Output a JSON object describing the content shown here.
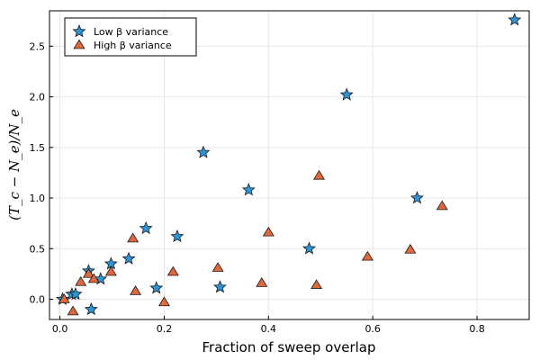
{
  "chart_data": {
    "type": "scatter",
    "xlabel": "Fraction of sweep overlap",
    "ylabel": "(T_c − N_e)/N_e",
    "xlim": [
      -0.02,
      0.9
    ],
    "ylim": [
      -0.2,
      2.85
    ],
    "x_ticks": [
      0.0,
      0.2,
      0.4,
      0.6,
      0.8
    ],
    "x_tick_labels": [
      "0.0",
      "0.2",
      "0.4",
      "0.6",
      "0.8"
    ],
    "y_ticks": [
      0.0,
      0.5,
      1.0,
      1.5,
      2.0,
      2.5
    ],
    "y_tick_labels": [
      "0.0",
      "0.5",
      "1.0",
      "1.5",
      "2.0",
      "2.5"
    ],
    "grid": true,
    "legend_position": "top-left",
    "series": [
      {
        "name": "Low β variance",
        "marker": "star",
        "color": "#2b95d8",
        "points": [
          {
            "x": 0.005,
            "y": 0.0
          },
          {
            "x": 0.023,
            "y": 0.05
          },
          {
            "x": 0.03,
            "y": 0.05
          },
          {
            "x": 0.055,
            "y": 0.28
          },
          {
            "x": 0.06,
            "y": -0.1
          },
          {
            "x": 0.078,
            "y": 0.2
          },
          {
            "x": 0.098,
            "y": 0.35
          },
          {
            "x": 0.132,
            "y": 0.4
          },
          {
            "x": 0.165,
            "y": 0.7
          },
          {
            "x": 0.185,
            "y": 0.11
          },
          {
            "x": 0.225,
            "y": 0.62
          },
          {
            "x": 0.275,
            "y": 1.45
          },
          {
            "x": 0.307,
            "y": 0.12
          },
          {
            "x": 0.362,
            "y": 1.08
          },
          {
            "x": 0.478,
            "y": 0.5
          },
          {
            "x": 0.55,
            "y": 2.02
          },
          {
            "x": 0.685,
            "y": 1.0
          },
          {
            "x": 0.872,
            "y": 2.76
          }
        ]
      },
      {
        "name": "High β variance",
        "marker": "triangle",
        "color": "#e0683c",
        "points": [
          {
            "x": 0.008,
            "y": 0.0
          },
          {
            "x": 0.025,
            "y": -0.12
          },
          {
            "x": 0.04,
            "y": 0.17
          },
          {
            "x": 0.055,
            "y": 0.25
          },
          {
            "x": 0.065,
            "y": 0.2
          },
          {
            "x": 0.098,
            "y": 0.27
          },
          {
            "x": 0.14,
            "y": 0.6
          },
          {
            "x": 0.145,
            "y": 0.08
          },
          {
            "x": 0.2,
            "y": -0.03
          },
          {
            "x": 0.217,
            "y": 0.27
          },
          {
            "x": 0.303,
            "y": 0.31
          },
          {
            "x": 0.387,
            "y": 0.16
          },
          {
            "x": 0.4,
            "y": 0.66
          },
          {
            "x": 0.492,
            "y": 0.14
          },
          {
            "x": 0.497,
            "y": 1.22
          },
          {
            "x": 0.59,
            "y": 0.42
          },
          {
            "x": 0.672,
            "y": 0.49
          },
          {
            "x": 0.733,
            "y": 0.92
          }
        ]
      }
    ]
  }
}
